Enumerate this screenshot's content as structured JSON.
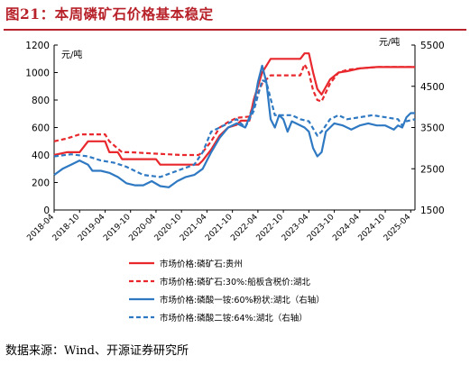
{
  "title": "图21：本周磷矿石价格基本稳定",
  "source": "数据来源：Wind、开源证券研究所",
  "chart_data": {
    "type": "line",
    "left_unit": "元/吨",
    "right_unit": "元/吨",
    "y_left": {
      "min": 0,
      "max": 1200,
      "ticks": [
        0,
        200,
        400,
        600,
        800,
        1000,
        1200
      ]
    },
    "y_right": {
      "min": 1500,
      "max": 5500,
      "ticks": [
        1500,
        2500,
        3500,
        4500,
        5500
      ]
    },
    "x_range": [
      "2018-04",
      "2025-05"
    ],
    "x_ticks": [
      "2018-04",
      "2018-10",
      "2019-04",
      "2019-10",
      "2020-04",
      "2020-10",
      "2021-04",
      "2021-10",
      "2022-04",
      "2022-10",
      "2023-04",
      "2023-10",
      "2024-04",
      "2024-10",
      "2025-04"
    ],
    "legend_position": "bottom",
    "series": [
      {
        "name": "市场价格:磷矿石:贵州",
        "axis": "left",
        "color": "#e8282d",
        "dash": false,
        "points": [
          [
            "2018-04",
            400
          ],
          [
            "2018-07",
            420
          ],
          [
            "2018-10",
            420
          ],
          [
            "2018-12",
            500
          ],
          [
            "2019-04",
            500
          ],
          [
            "2019-05",
            420
          ],
          [
            "2019-07",
            420
          ],
          [
            "2019-08",
            370
          ],
          [
            "2019-10",
            370
          ],
          [
            "2020-04",
            370
          ],
          [
            "2020-05",
            330
          ],
          [
            "2020-10",
            330
          ],
          [
            "2021-02",
            330
          ],
          [
            "2021-03",
            360
          ],
          [
            "2021-05",
            440
          ],
          [
            "2021-07",
            540
          ],
          [
            "2021-09",
            600
          ],
          [
            "2021-11",
            620
          ],
          [
            "2021-12",
            650
          ],
          [
            "2022-02",
            650
          ],
          [
            "2022-03",
            800
          ],
          [
            "2022-05",
            1000
          ],
          [
            "2022-06",
            1050
          ],
          [
            "2022-07",
            1100
          ],
          [
            "2022-09",
            1100
          ],
          [
            "2022-12",
            1100
          ],
          [
            "2023-02",
            1100
          ],
          [
            "2023-03",
            1140
          ],
          [
            "2023-04",
            1140
          ],
          [
            "2023-05",
            1000
          ],
          [
            "2023-06",
            880
          ],
          [
            "2023-07",
            840
          ],
          [
            "2023-09",
            950
          ],
          [
            "2023-11",
            1000
          ],
          [
            "2024-01",
            1010
          ],
          [
            "2024-04",
            1030
          ],
          [
            "2024-08",
            1040
          ],
          [
            "2025-04",
            1040
          ],
          [
            "2025-05",
            1040
          ]
        ]
      },
      {
        "name": "市场价格:磷矿石:30%:船板含税价:湖北",
        "axis": "left",
        "color": "#e8282d",
        "dash": true,
        "points": [
          [
            "2018-04",
            500
          ],
          [
            "2018-07",
            520
          ],
          [
            "2018-10",
            550
          ],
          [
            "2019-04",
            550
          ],
          [
            "2019-05",
            500
          ],
          [
            "2019-08",
            420
          ],
          [
            "2019-10",
            420
          ],
          [
            "2020-04",
            410
          ],
          [
            "2020-10",
            400
          ],
          [
            "2021-02",
            400
          ],
          [
            "2021-03",
            420
          ],
          [
            "2021-05",
            500
          ],
          [
            "2021-07",
            600
          ],
          [
            "2021-09",
            640
          ],
          [
            "2021-11",
            670
          ],
          [
            "2022-02",
            680
          ],
          [
            "2022-03",
            780
          ],
          [
            "2022-05",
            920
          ],
          [
            "2022-07",
            980
          ],
          [
            "2022-09",
            980
          ],
          [
            "2022-12",
            980
          ],
          [
            "2023-02",
            980
          ],
          [
            "2023-03",
            1060
          ],
          [
            "2023-04",
            1000
          ],
          [
            "2023-05",
            870
          ],
          [
            "2023-06",
            800
          ],
          [
            "2023-07",
            790
          ],
          [
            "2023-09",
            920
          ],
          [
            "2023-11",
            1000
          ],
          [
            "2024-01",
            1020
          ],
          [
            "2024-04",
            1030
          ],
          [
            "2024-08",
            1040
          ],
          [
            "2025-04",
            1040
          ],
          [
            "2025-05",
            1040
          ]
        ]
      },
      {
        "name": "市场价格:磷酸一铵:60%粉状:湖北（右轴）",
        "axis": "right",
        "color": "#2f79c3",
        "dash": false,
        "points": [
          [
            "2018-04",
            2350
          ],
          [
            "2018-06",
            2500
          ],
          [
            "2018-08",
            2600
          ],
          [
            "2018-10",
            2700
          ],
          [
            "2018-12",
            2600
          ],
          [
            "2019-01",
            2450
          ],
          [
            "2019-03",
            2450
          ],
          [
            "2019-05",
            2400
          ],
          [
            "2019-07",
            2300
          ],
          [
            "2019-09",
            2150
          ],
          [
            "2019-11",
            2100
          ],
          [
            "2020-01",
            2100
          ],
          [
            "2020-03",
            2200
          ],
          [
            "2020-05",
            2080
          ],
          [
            "2020-07",
            2050
          ],
          [
            "2020-09",
            2200
          ],
          [
            "2020-11",
            2300
          ],
          [
            "2021-01",
            2350
          ],
          [
            "2021-03",
            2500
          ],
          [
            "2021-05",
            2900
          ],
          [
            "2021-07",
            3250
          ],
          [
            "2021-09",
            3500
          ],
          [
            "2021-11",
            3600
          ],
          [
            "2022-01",
            3500
          ],
          [
            "2022-03",
            4000
          ],
          [
            "2022-04",
            4600
          ],
          [
            "2022-05",
            5000
          ],
          [
            "2022-06",
            4600
          ],
          [
            "2022-07",
            3700
          ],
          [
            "2022-08",
            3500
          ],
          [
            "2022-09",
            3800
          ],
          [
            "2022-10",
            3700
          ],
          [
            "2022-11",
            3400
          ],
          [
            "2022-12",
            3650
          ],
          [
            "2023-01",
            3600
          ],
          [
            "2023-03",
            3500
          ],
          [
            "2023-04",
            3400
          ],
          [
            "2023-05",
            3000
          ],
          [
            "2023-06",
            2800
          ],
          [
            "2023-07",
            2900
          ],
          [
            "2023-08",
            3400
          ],
          [
            "2023-10",
            3600
          ],
          [
            "2023-12",
            3550
          ],
          [
            "2024-02",
            3450
          ],
          [
            "2024-04",
            3550
          ],
          [
            "2024-06",
            3600
          ],
          [
            "2024-08",
            3550
          ],
          [
            "2024-10",
            3550
          ],
          [
            "2024-12",
            3450
          ],
          [
            "2025-01",
            3550
          ],
          [
            "2025-02",
            3500
          ],
          [
            "2025-03",
            3750
          ],
          [
            "2025-04",
            3850
          ],
          [
            "2025-05",
            3850
          ]
        ]
      },
      {
        "name": "市场价格:磷酸二铵:64%:湖北（右轴）",
        "axis": "right",
        "color": "#2f79c3",
        "dash": true,
        "points": [
          [
            "2018-04",
            2800
          ],
          [
            "2018-08",
            2850
          ],
          [
            "2018-12",
            2800
          ],
          [
            "2019-03",
            2700
          ],
          [
            "2019-06",
            2650
          ],
          [
            "2019-09",
            2550
          ],
          [
            "2020-01",
            2350
          ],
          [
            "2020-05",
            2300
          ],
          [
            "2020-09",
            2450
          ],
          [
            "2021-01",
            2600
          ],
          [
            "2021-03",
            2900
          ],
          [
            "2021-05",
            3400
          ],
          [
            "2021-07",
            3500
          ],
          [
            "2021-09",
            3600
          ],
          [
            "2021-11",
            3700
          ],
          [
            "2022-01",
            3500
          ],
          [
            "2022-03",
            3900
          ],
          [
            "2022-05",
            4650
          ],
          [
            "2022-06",
            4600
          ],
          [
            "2022-08",
            3800
          ],
          [
            "2022-10",
            3800
          ],
          [
            "2022-12",
            3800
          ],
          [
            "2023-02",
            3700
          ],
          [
            "2023-04",
            3650
          ],
          [
            "2023-06",
            3300
          ],
          [
            "2023-07",
            3400
          ],
          [
            "2023-09",
            3700
          ],
          [
            "2023-11",
            3800
          ],
          [
            "2024-01",
            3700
          ],
          [
            "2024-04",
            3750
          ],
          [
            "2024-07",
            3800
          ],
          [
            "2024-10",
            3750
          ],
          [
            "2025-01",
            3700
          ],
          [
            "2025-02",
            3550
          ],
          [
            "2025-03",
            3650
          ],
          [
            "2025-05",
            3700
          ]
        ]
      }
    ]
  }
}
